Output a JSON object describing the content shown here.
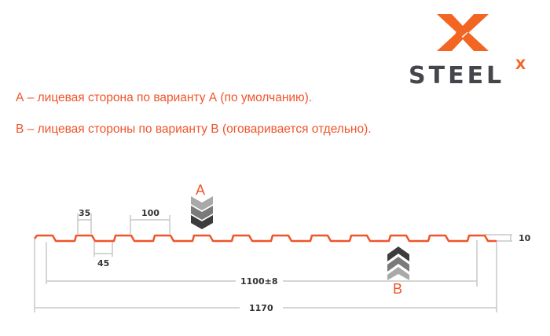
{
  "logo": {
    "text": "STEEL",
    "superscript": "X",
    "accent_color": "#f26522",
    "text_color": "#44464b"
  },
  "captions": {
    "a": "А – лицевая сторона по варианту А (по умолчанию).",
    "b": "В – лицевая стороны по варианту В (оговаривается отдельно)."
  },
  "diagram": {
    "profile_color": "#f0542a",
    "side_a_label": "A",
    "side_b_label": "B",
    "dimensions": {
      "crest_width": "35",
      "pitch": "100",
      "valley_width": "45",
      "working_width": "1100±8",
      "total_width": "1170",
      "height": "10"
    }
  }
}
